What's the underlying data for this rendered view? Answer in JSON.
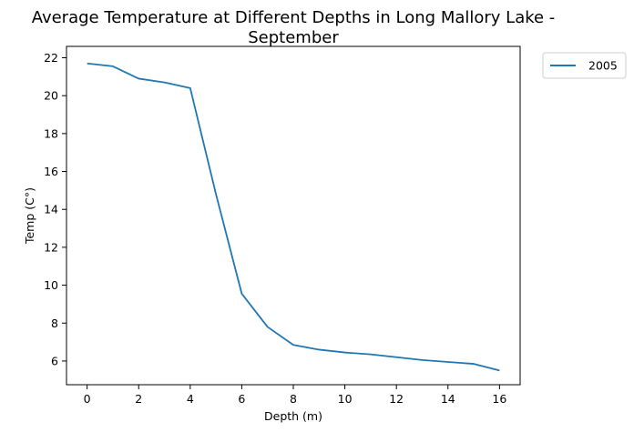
{
  "chart_data": {
    "type": "line",
    "title_lines": [
      "Average Temperature at Different Depths in Long Mallory Lake -",
      "September"
    ],
    "xlabel": "Depth (m)",
    "ylabel": "Temp (C°)",
    "xlim": [
      -0.8,
      16.8
    ],
    "ylim": [
      4.75,
      22.6
    ],
    "xticks": [
      0,
      2,
      4,
      6,
      8,
      10,
      12,
      14,
      16
    ],
    "yticks": [
      6,
      8,
      10,
      12,
      14,
      16,
      18,
      20,
      22
    ],
    "grid": false,
    "legend_position": "outside-top-right",
    "series": [
      {
        "name": "2005",
        "color": "#1f77b4",
        "x": [
          0,
          1,
          2,
          3,
          4,
          5,
          6,
          7,
          8,
          9,
          10,
          11,
          12,
          13,
          14,
          15,
          16
        ],
        "y": [
          21.7,
          21.55,
          20.9,
          20.7,
          20.4,
          14.8,
          9.55,
          7.8,
          6.85,
          6.6,
          6.45,
          6.35,
          6.2,
          6.05,
          5.95,
          5.85,
          5.5
        ]
      }
    ]
  }
}
